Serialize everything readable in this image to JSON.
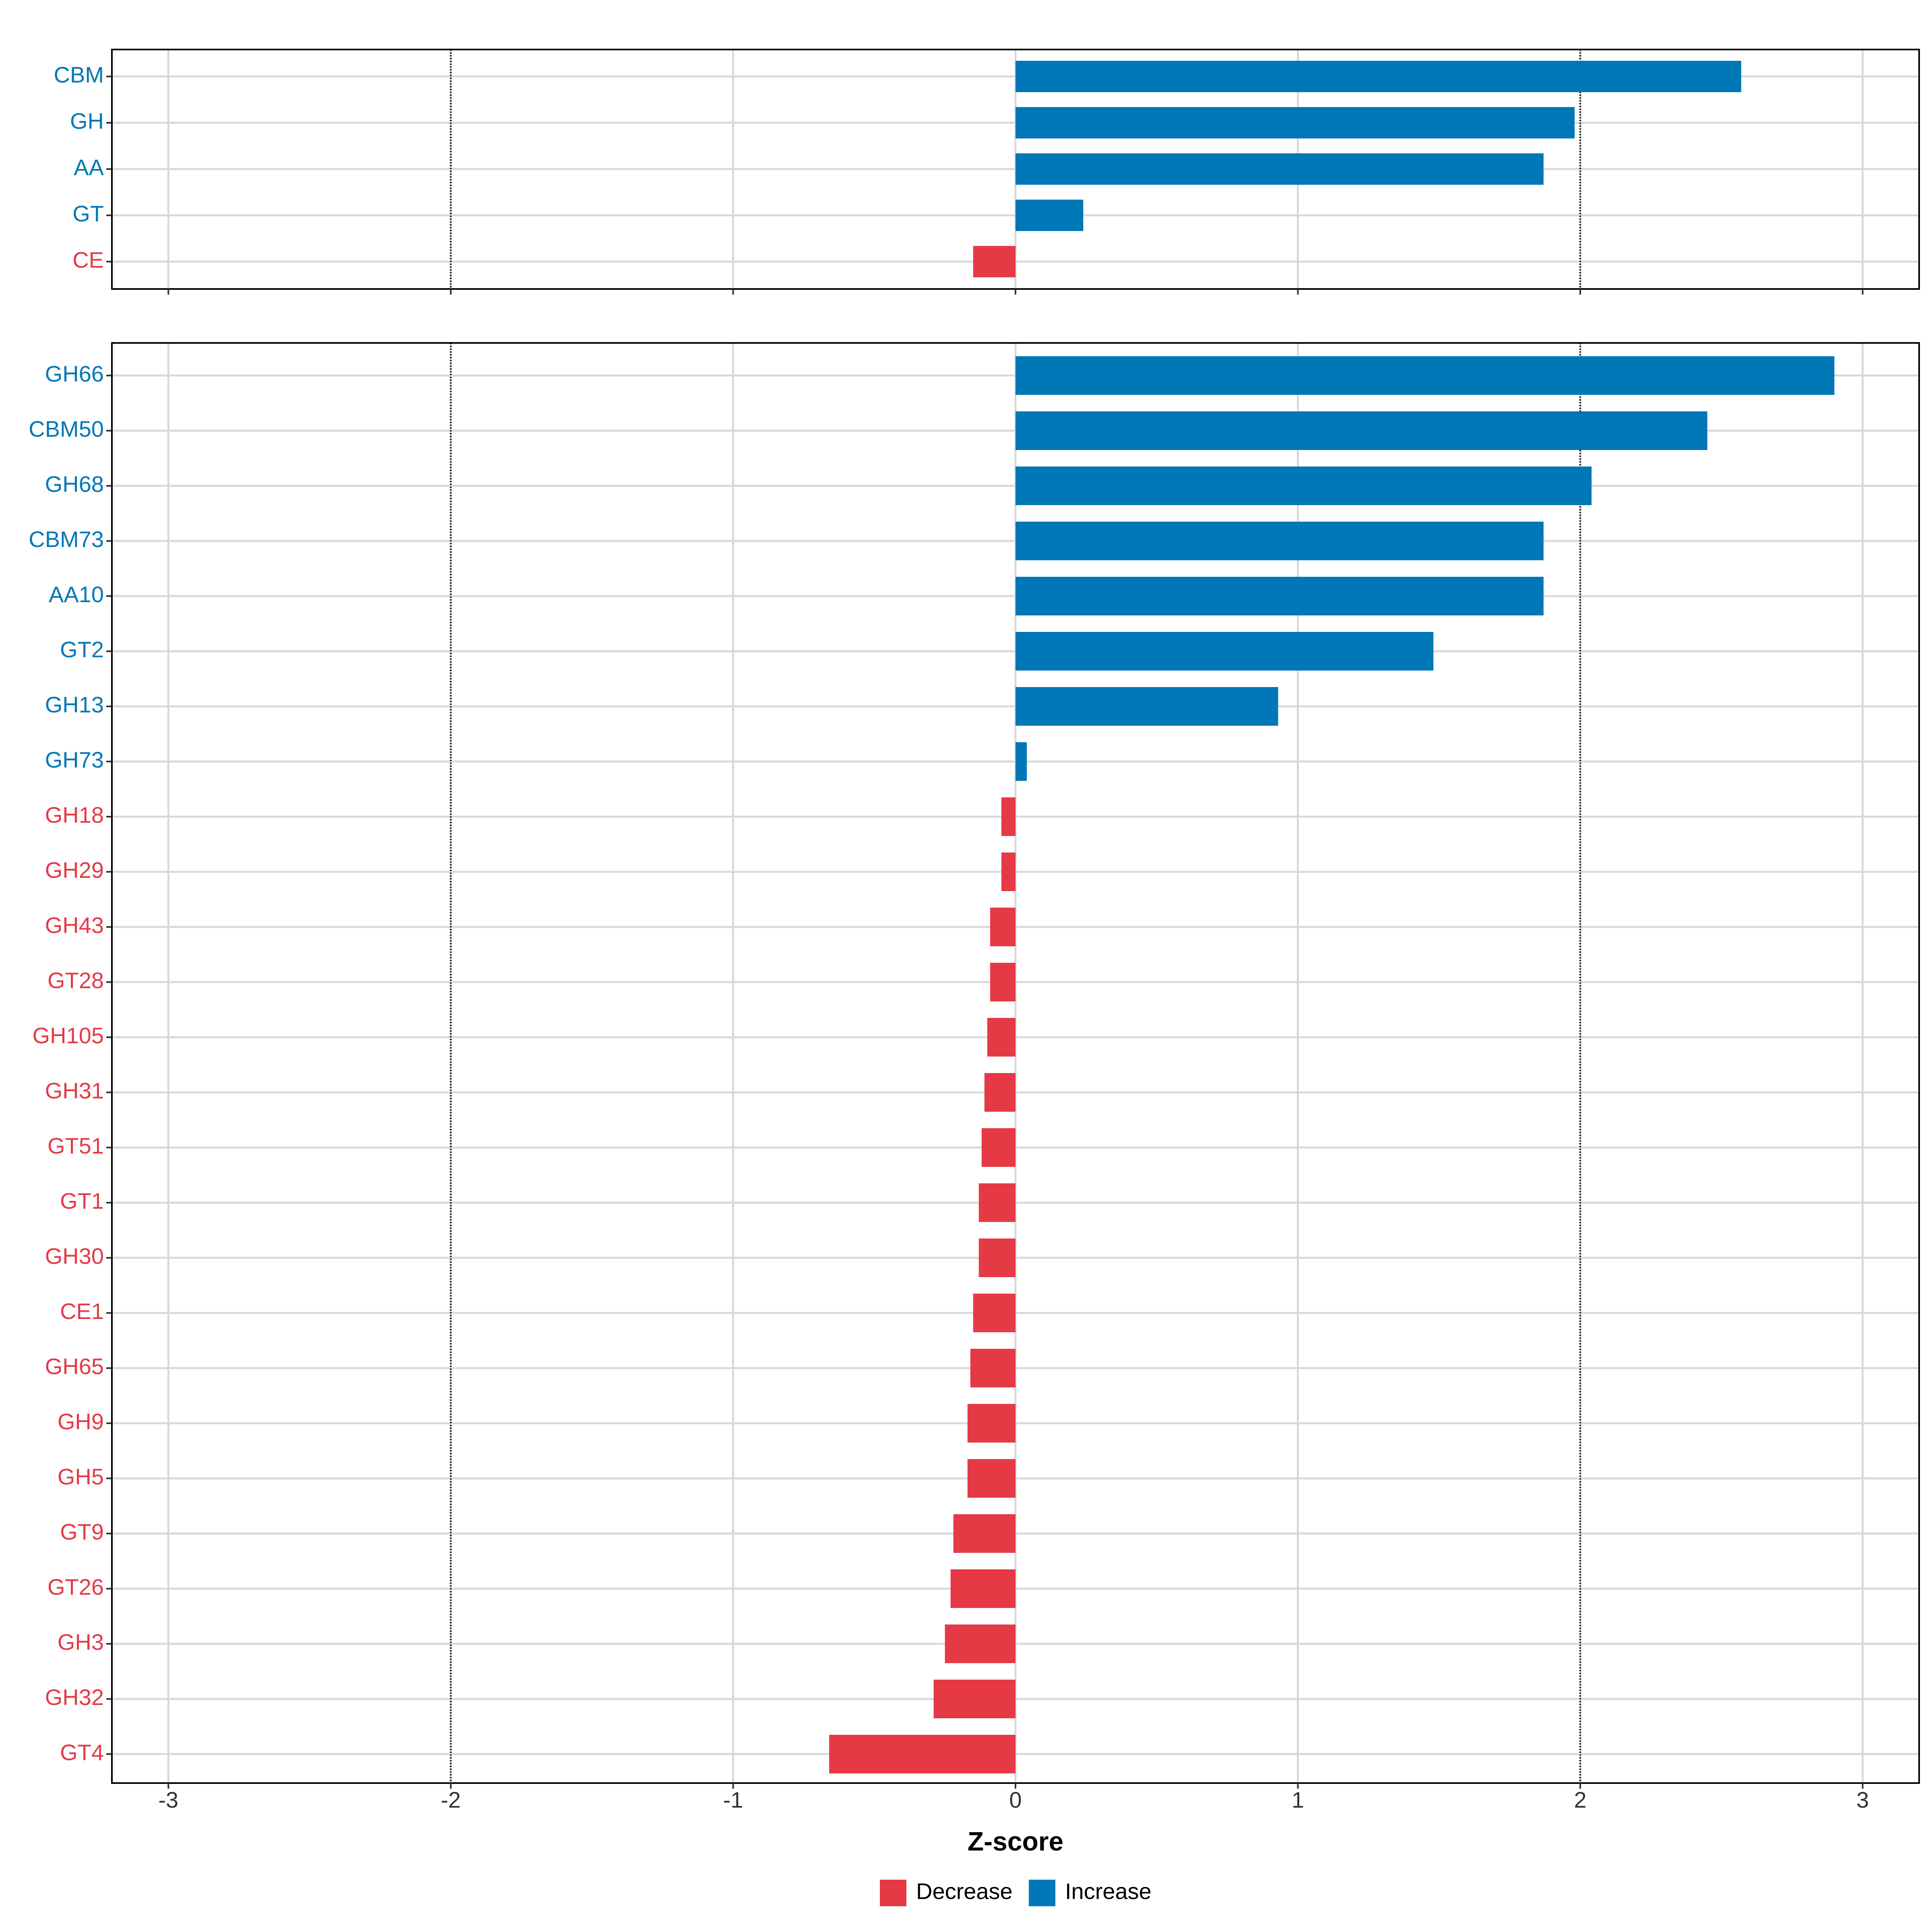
{
  "colors": {
    "increase": "#0077B6",
    "decrease": "#E63946",
    "grid": "#D9D9D9",
    "frame": "#000000",
    "tick_text": "#333333",
    "threshold": "#000000"
  },
  "chart_data": [
    {
      "type": "bar",
      "orientation": "horizontal",
      "panel": "top",
      "categories": [
        "CBM",
        "GH",
        "AA",
        "GT",
        "CE"
      ],
      "values": [
        2.57,
        1.98,
        1.87,
        0.24,
        -0.15
      ],
      "xlim": [
        -3.2,
        3.2
      ],
      "xticks": [
        -3,
        -2,
        -1,
        0,
        1,
        2,
        3
      ],
      "threshold_lines": [
        -2,
        2
      ]
    },
    {
      "type": "bar",
      "orientation": "horizontal",
      "panel": "bottom",
      "categories": [
        "GH66",
        "CBM50",
        "GH68",
        "CBM73",
        "AA10",
        "GT2",
        "GH13",
        "GH73",
        "GH18",
        "GH29",
        "GH43",
        "GT28",
        "GH105",
        "GH31",
        "GT51",
        "GT1",
        "GH30",
        "CE1",
        "GH65",
        "GH9",
        "GH5",
        "GT9",
        "GT26",
        "GH3",
        "GH32",
        "GT4"
      ],
      "values": [
        2.9,
        2.45,
        2.04,
        1.87,
        1.87,
        1.48,
        0.93,
        0.04,
        -0.05,
        -0.05,
        -0.09,
        -0.09,
        -0.1,
        -0.11,
        -0.12,
        -0.13,
        -0.13,
        -0.15,
        -0.16,
        -0.17,
        -0.17,
        -0.22,
        -0.23,
        -0.25,
        -0.29,
        -0.66
      ],
      "xlim": [
        -3.2,
        3.2
      ],
      "xticks": [
        -3,
        -2,
        -1,
        0,
        1,
        2,
        3
      ],
      "xtick_labels": [
        "-3",
        "-2",
        "-1",
        "0",
        "1",
        "2",
        "3"
      ],
      "xlabel": "Z-score",
      "threshold_lines": [
        -2,
        2
      ]
    }
  ],
  "legend": {
    "items": [
      {
        "label": "Decrease",
        "color": "#E63946"
      },
      {
        "label": "Increase",
        "color": "#0077B6"
      }
    ]
  }
}
